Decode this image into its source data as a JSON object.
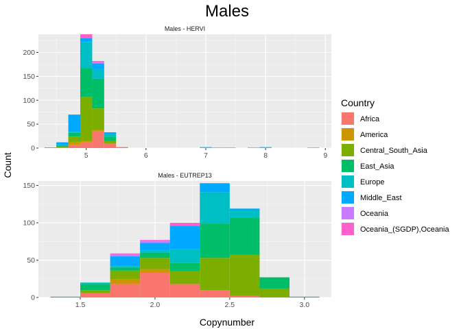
{
  "title": "Males",
  "xlabel": "Copynumber",
  "ylabel": "Count",
  "legend": {
    "title": "Country",
    "items": [
      {
        "label": "Africa",
        "color": "#F8766D"
      },
      {
        "label": "America",
        "color": "#CD9600"
      },
      {
        "label": "Central_South_Asia",
        "color": "#7CAE00"
      },
      {
        "label": "East_Asia",
        "color": "#00BE67"
      },
      {
        "label": "Europe",
        "color": "#00BFC4"
      },
      {
        "label": "Middle_East",
        "color": "#00A9FF"
      },
      {
        "label": "Oceania",
        "color": "#C77CFF"
      },
      {
        "label": "Oceania_(SGDP),Oceania",
        "color": "#FF61CC"
      }
    ]
  },
  "chart_data": [
    {
      "type": "bar",
      "subtype": "stacked-histogram",
      "title": "Males - HERVI",
      "xlim": [
        4.2,
        9.1
      ],
      "ylim": [
        0,
        238
      ],
      "xticks": [
        5,
        6,
        7,
        8,
        9
      ],
      "yticks": [
        0,
        50,
        100,
        150,
        200
      ],
      "bins": [
        {
          "x0": 4.3,
          "x1": 4.5,
          "values": [
            0,
            0,
            0,
            1,
            0,
            0,
            0,
            0
          ]
        },
        {
          "x0": 4.5,
          "x1": 4.7,
          "values": [
            1,
            0,
            2,
            2,
            2,
            5,
            0,
            0
          ]
        },
        {
          "x0": 4.7,
          "x1": 4.9,
          "values": [
            7,
            5,
            12,
            8,
            2,
            36,
            0,
            0
          ]
        },
        {
          "x0": 4.9,
          "x1": 5.1,
          "values": [
            12,
            3,
            92,
            60,
            55,
            8,
            0,
            8
          ]
        },
        {
          "x0": 5.1,
          "x1": 5.3,
          "values": [
            36,
            2,
            45,
            62,
            20,
            12,
            2,
            3
          ]
        },
        {
          "x0": 5.3,
          "x1": 5.5,
          "values": [
            10,
            0,
            5,
            8,
            7,
            3,
            0,
            0
          ]
        },
        {
          "x0": 5.5,
          "x1": 5.7,
          "values": [
            2,
            0,
            0,
            0,
            0,
            0,
            0,
            0
          ]
        },
        {
          "x0": 6.9,
          "x1": 7.1,
          "values": [
            1,
            0,
            0,
            0,
            0,
            1,
            0,
            0
          ]
        },
        {
          "x0": 7.1,
          "x1": 7.3,
          "values": [
            1,
            0,
            0,
            0,
            0,
            0,
            0,
            0
          ]
        },
        {
          "x0": 7.3,
          "x1": 7.5,
          "values": [
            1,
            0,
            0,
            0,
            0,
            0,
            0,
            0
          ]
        },
        {
          "x0": 7.7,
          "x1": 7.9,
          "values": [
            1,
            0,
            0,
            0,
            0,
            0,
            0,
            0
          ]
        },
        {
          "x0": 7.9,
          "x1": 8.1,
          "values": [
            1,
            0,
            0,
            0,
            0,
            1,
            0,
            0
          ]
        },
        {
          "x0": 8.7,
          "x1": 8.9,
          "values": [
            1,
            0,
            0,
            0,
            0,
            0,
            0,
            0
          ]
        }
      ]
    },
    {
      "type": "bar",
      "subtype": "stacked-histogram",
      "title": "Males - EUTREP13",
      "xlim": [
        1.22,
        3.18
      ],
      "ylim": [
        0,
        156
      ],
      "xticks": [
        1.5,
        2.0,
        2.5,
        3.0
      ],
      "xticklabels": [
        "1.5",
        "2.0",
        "2.5",
        "3.0"
      ],
      "yticks": [
        0,
        50,
        100,
        150
      ],
      "bins": [
        {
          "x0": 1.3,
          "x1": 1.5,
          "values": [
            0,
            0,
            0,
            1,
            0,
            0,
            0,
            0
          ]
        },
        {
          "x0": 1.5,
          "x1": 1.7,
          "values": [
            6,
            0,
            4,
            8,
            2,
            0,
            0,
            0
          ]
        },
        {
          "x0": 1.7,
          "x1": 1.9,
          "values": [
            18,
            6,
            12,
            4,
            2,
            13,
            3,
            1
          ]
        },
        {
          "x0": 1.9,
          "x1": 2.1,
          "values": [
            33,
            5,
            15,
            7,
            3,
            10,
            3,
            1
          ]
        },
        {
          "x0": 2.1,
          "x1": 2.3,
          "values": [
            18,
            0,
            17,
            11,
            19,
            31,
            0,
            4
          ]
        },
        {
          "x0": 2.3,
          "x1": 2.5,
          "values": [
            10,
            0,
            43,
            46,
            42,
            12,
            0,
            0
          ]
        },
        {
          "x0": 2.5,
          "x1": 2.7,
          "values": [
            2,
            0,
            55,
            50,
            10,
            2,
            0,
            0
          ]
        },
        {
          "x0": 2.7,
          "x1": 2.9,
          "values": [
            0,
            0,
            12,
            15,
            0,
            0,
            0,
            0
          ]
        },
        {
          "x0": 2.9,
          "x1": 3.1,
          "values": [
            0,
            0,
            0,
            1,
            0,
            0,
            0,
            0
          ]
        }
      ]
    }
  ]
}
